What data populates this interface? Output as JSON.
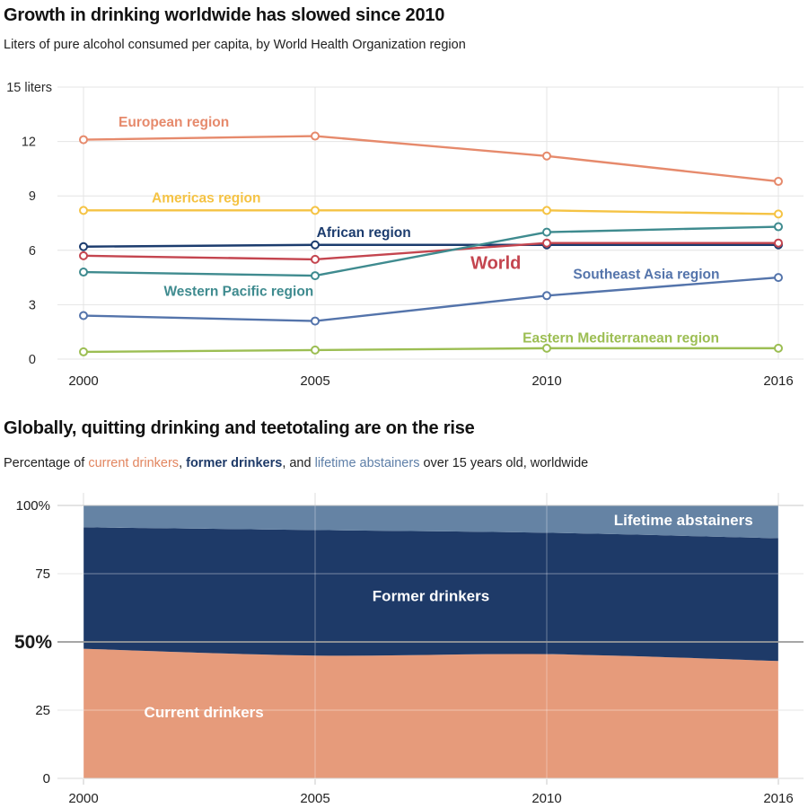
{
  "chart_data": [
    {
      "type": "line",
      "title": "Growth in drinking worldwide has slowed since 2010",
      "subtitle": "Liters of pure alcohol consumed per capita, by World Health Organization region",
      "x": [
        2000,
        2005,
        2010,
        2016
      ],
      "x_tick_labels": [
        "2000",
        "2005",
        "2010",
        "2016"
      ],
      "ylim": [
        0,
        15
      ],
      "y_ticks": [
        {
          "v": 15,
          "label": "15 liters"
        },
        {
          "v": 12,
          "label": "12"
        },
        {
          "v": 9,
          "label": "9"
        },
        {
          "v": 6,
          "label": "6"
        },
        {
          "v": 3,
          "label": "3"
        },
        {
          "v": 0,
          "label": "0"
        }
      ],
      "grid": true,
      "legend_position": "inline-labels",
      "series": [
        {
          "name": "European region",
          "values": [
            12.1,
            12.3,
            11.2,
            9.8
          ],
          "color": "#E68A6C",
          "label_pos": {
            "xi": 0.39,
            "v": 13.1
          }
        },
        {
          "name": "Americas region",
          "values": [
            8.2,
            8.2,
            8.2,
            8.0
          ],
          "color": "#F5C344",
          "label_pos": {
            "xi": 0.53,
            "v": 8.9
          }
        },
        {
          "name": "African region",
          "values": [
            6.2,
            6.3,
            6.3,
            6.3
          ],
          "color": "#1C3C6E",
          "label_pos": {
            "xi": 1.21,
            "v": 7.0
          }
        },
        {
          "name": "World",
          "values": [
            5.7,
            5.5,
            6.4,
            6.4
          ],
          "color": "#C4454F",
          "big": true,
          "label_pos": {
            "xi": 1.78,
            "v": 5.25
          }
        },
        {
          "name": "Western Pacific region",
          "values": [
            4.8,
            4.6,
            7.0,
            7.3
          ],
          "color": "#3F8B8F",
          "label_pos": {
            "xi": 0.67,
            "v": 3.76
          }
        },
        {
          "name": "Southeast Asia region",
          "values": [
            2.4,
            2.1,
            3.5,
            4.5
          ],
          "color": "#5474AB",
          "label_pos": {
            "xi": 2.43,
            "v": 4.7
          }
        },
        {
          "name": "Eastern Mediterranean region",
          "values": [
            0.4,
            0.5,
            0.6,
            0.6
          ],
          "color": "#9CBE53",
          "label_pos": {
            "xi": 2.32,
            "v": 1.2
          }
        }
      ]
    },
    {
      "type": "area",
      "stacked": true,
      "title": "Globally, quitting drinking and teetotaling are on the rise",
      "subtitle_parts": [
        {
          "t": "Percentage of "
        },
        {
          "t": "current drinkers",
          "color": "#E2855F"
        },
        {
          "t": ", "
        },
        {
          "t": "former drinkers",
          "color": "#1E3A68",
          "bold": true
        },
        {
          "t": ", and "
        },
        {
          "t": "lifetime abstainers",
          "color": "#5E7FA8"
        },
        {
          "t": " over 15 years old, worldwide"
        }
      ],
      "x": [
        2000,
        2005,
        2010,
        2016
      ],
      "x_tick_labels": [
        "2000",
        "2005",
        "2010",
        "2016"
      ],
      "ylim": [
        0,
        100
      ],
      "y_ticks": [
        {
          "v": 100,
          "label": "100%"
        },
        {
          "v": 75,
          "label": "75"
        },
        {
          "v": 50,
          "label": "50%",
          "bold": true
        },
        {
          "v": 25,
          "label": "25"
        },
        {
          "v": 0,
          "label": "0"
        }
      ],
      "grid": true,
      "legend_position": "inline-labels",
      "series": [
        {
          "name": "Current drinkers",
          "values": [
            47.5,
            45,
            45.5,
            43
          ],
          "color": "#E69B7B",
          "label_color": "#ffffff",
          "label_pos": {
            "xi": 0.52,
            "v": 24.3
          }
        },
        {
          "name": "Former drinkers",
          "values": [
            44.5,
            46,
            44.5,
            45
          ],
          "color": "#1E3A68",
          "label_color": "#ffffff",
          "label_pos": {
            "xi": 1.5,
            "v": 67.0
          }
        },
        {
          "name": "Lifetime abstainers",
          "values": [
            8,
            9,
            10,
            12
          ],
          "color": "#6583A4",
          "label_color": "#ffffff",
          "label_pos": {
            "xi": 2.59,
            "v": 94.7
          }
        }
      ]
    }
  ]
}
